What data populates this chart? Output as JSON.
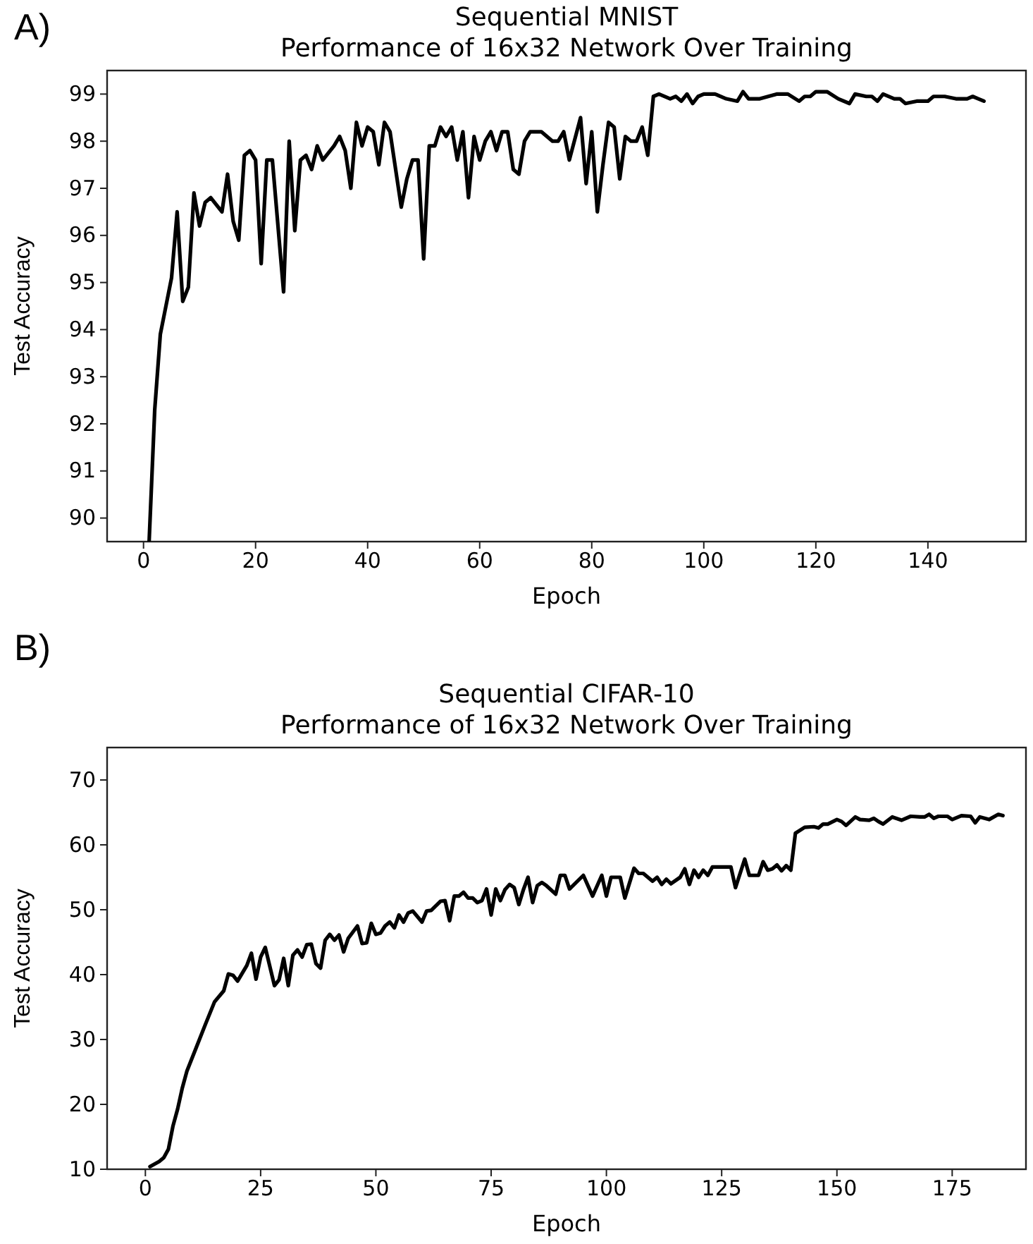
{
  "chart_data": [
    {
      "type": "line",
      "title": "Sequential MNIST\nPerformance of 16x32 Network Over Training",
      "xlabel": "Epoch",
      "ylabel": "Test Accuracy",
      "annotations": [
        "A)"
      ],
      "xlim": [
        -6.5,
        157.5
      ],
      "xticks": [
        0,
        20,
        40,
        60,
        80,
        100,
        120,
        140
      ],
      "ylim": [
        89.5,
        99.5
      ],
      "yticks": [
        90,
        91,
        92,
        93,
        94,
        95,
        96,
        97,
        98,
        99
      ],
      "series": [
        {
          "color": "#000000",
          "x": [
            1,
            2,
            3,
            5,
            6,
            7,
            8,
            9,
            10,
            11,
            12,
            14,
            15,
            16,
            17,
            18,
            19,
            20,
            21,
            22,
            23,
            25,
            26,
            27,
            28,
            29,
            30,
            31,
            32,
            34,
            35,
            36,
            37,
            38,
            39,
            40,
            41,
            42,
            43,
            44,
            46,
            47,
            48,
            49,
            50,
            51,
            52,
            53,
            54,
            55,
            56,
            57,
            58,
            59,
            60,
            61,
            62,
            63,
            64,
            65,
            66,
            67,
            68,
            69,
            70,
            71,
            72,
            73,
            74,
            75,
            76,
            78,
            79,
            80,
            81,
            82,
            83,
            84,
            85,
            86,
            87,
            88,
            89,
            90,
            91,
            92,
            94,
            95,
            96,
            97,
            98,
            99,
            100,
            102,
            104,
            106,
            107,
            108,
            110,
            113,
            115,
            117,
            118,
            119,
            120,
            122,
            124,
            126,
            127,
            129,
            130,
            131,
            132,
            134,
            135,
            136,
            138,
            140,
            141,
            143,
            145,
            147,
            148,
            149,
            150
          ],
          "values": [
            89.5,
            92.3,
            93.9,
            95.1,
            96.5,
            94.6,
            94.9,
            96.9,
            96.2,
            96.7,
            96.8,
            96.5,
            97.3,
            96.3,
            95.9,
            97.7,
            97.8,
            97.6,
            95.4,
            97.6,
            97.6,
            94.8,
            98.0,
            96.1,
            97.6,
            97.7,
            97.4,
            97.9,
            97.6,
            97.9,
            98.1,
            97.8,
            97.0,
            98.4,
            97.9,
            98.3,
            98.2,
            97.5,
            98.4,
            98.2,
            96.6,
            97.2,
            97.6,
            97.6,
            95.5,
            97.9,
            97.9,
            98.3,
            98.1,
            98.3,
            97.6,
            98.2,
            96.8,
            98.1,
            97.6,
            98.0,
            98.2,
            97.8,
            98.2,
            98.2,
            97.4,
            97.3,
            98.0,
            98.2,
            98.2,
            98.2,
            98.1,
            98.0,
            98.0,
            98.2,
            97.6,
            98.5,
            97.1,
            98.2,
            96.5,
            97.5,
            98.4,
            98.3,
            97.2,
            98.1,
            98.0,
            98.0,
            98.3,
            97.7,
            98.95,
            99.0,
            98.9,
            98.95,
            98.85,
            99.0,
            98.8,
            98.95,
            99.0,
            99.0,
            98.9,
            98.85,
            99.05,
            98.9,
            98.9,
            99.0,
            99.0,
            98.85,
            98.95,
            98.95,
            99.05,
            99.05,
            98.9,
            98.8,
            99.0,
            98.95,
            98.95,
            98.85,
            99.0,
            98.9,
            98.9,
            98.8,
            98.85,
            98.85,
            98.95,
            98.95,
            98.9,
            98.9,
            98.95,
            98.9,
            98.85
          ]
        }
      ]
    },
    {
      "type": "line",
      "title": "Sequential CIFAR-10\nPerformance of 16x32 Network Over Training",
      "xlabel": "Epoch",
      "ylabel": "Test Accuracy",
      "annotations": [
        "B)"
      ],
      "xlim": [
        -8.3,
        191
      ],
      "xticks": [
        0,
        25,
        50,
        75,
        100,
        125,
        150,
        175
      ],
      "ylim": [
        10,
        75
      ],
      "yticks": [
        10,
        20,
        30,
        40,
        50,
        60,
        70
      ],
      "series": [
        {
          "color": "#000000",
          "x": [
            1,
            3,
            4,
            5,
            6,
            7,
            8,
            9,
            11,
            13,
            15,
            17,
            18,
            19,
            20,
            22,
            23,
            24,
            25,
            26,
            28,
            29,
            30,
            31,
            32,
            33,
            34,
            35,
            36,
            37,
            38,
            39,
            40,
            41,
            42,
            43,
            44,
            46,
            47,
            48,
            49,
            50,
            51,
            52,
            53,
            54,
            55,
            56,
            57,
            58,
            60,
            61,
            62,
            64,
            65,
            66,
            67,
            68,
            69,
            70,
            71,
            72,
            73,
            74,
            75,
            76,
            77,
            78,
            79,
            80,
            81,
            82,
            83,
            84,
            85,
            86,
            87,
            89,
            90,
            91,
            92,
            95,
            97,
            99,
            100,
            101,
            103,
            104,
            106,
            107,
            108,
            110,
            111,
            112,
            113,
            114,
            116,
            117,
            118,
            119,
            120,
            121,
            122,
            123,
            125,
            127,
            128,
            130,
            131,
            133,
            134,
            135,
            136,
            137,
            138,
            139,
            140,
            141,
            143,
            145,
            146,
            147,
            148,
            150,
            151,
            152,
            154,
            155,
            157,
            158,
            159,
            160,
            162,
            164,
            166,
            168,
            169,
            170,
            171,
            172,
            174,
            175,
            177,
            179,
            180,
            181,
            183,
            185,
            186
          ],
          "values": [
            10.4,
            11.2,
            11.8,
            13.1,
            16.7,
            19.3,
            22.5,
            25.1,
            28.7,
            32.3,
            35.8,
            37.5,
            40.1,
            39.9,
            39.0,
            41.4,
            43.3,
            39.3,
            42.7,
            44.2,
            38.3,
            39.2,
            42.5,
            38.3,
            43.0,
            43.8,
            42.7,
            44.6,
            44.7,
            41.7,
            41.0,
            45.3,
            46.2,
            45.3,
            46.1,
            43.5,
            45.6,
            47.5,
            44.8,
            44.9,
            47.9,
            46.2,
            46.4,
            47.5,
            48.1,
            47.2,
            49.2,
            48.1,
            49.5,
            49.8,
            48.1,
            49.8,
            49.9,
            51.3,
            51.4,
            48.3,
            52.1,
            52.1,
            52.7,
            51.8,
            51.8,
            51.1,
            51.4,
            53.2,
            49.2,
            53.2,
            51.4,
            53.1,
            53.9,
            53.4,
            50.8,
            53.1,
            55.0,
            51.1,
            53.7,
            54.2,
            53.7,
            52.4,
            55.3,
            55.3,
            53.2,
            55.3,
            52.1,
            55.3,
            52.1,
            55.0,
            55.0,
            51.8,
            56.4,
            55.6,
            55.6,
            54.4,
            55.0,
            53.9,
            54.7,
            54.0,
            55.0,
            56.3,
            53.9,
            56.1,
            55.0,
            56.1,
            55.3,
            56.6,
            56.6,
            56.6,
            53.4,
            57.8,
            55.3,
            55.3,
            57.4,
            56.1,
            56.3,
            56.9,
            56.0,
            56.8,
            56.1,
            61.8,
            62.7,
            62.8,
            62.6,
            63.2,
            63.2,
            63.9,
            63.6,
            63.0,
            64.3,
            63.9,
            63.8,
            64.1,
            63.6,
            63.2,
            64.3,
            63.8,
            64.4,
            64.3,
            64.3,
            64.7,
            64.1,
            64.4,
            64.4,
            63.9,
            64.5,
            64.4,
            63.4,
            64.3,
            63.9,
            64.7,
            64.5
          ]
        }
      ]
    }
  ]
}
